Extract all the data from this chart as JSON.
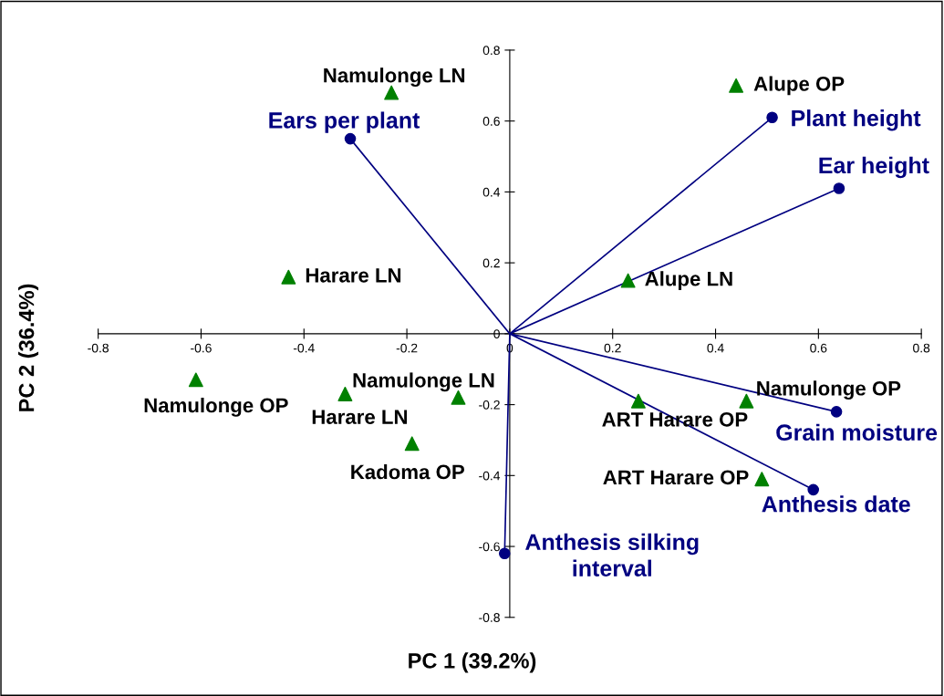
{
  "chart_data": {
    "type": "scatter",
    "xlabel": "PC 1 (39.2%)",
    "ylabel": "PC 2 (36.4%)",
    "xlim": [
      -0.8,
      0.8
    ],
    "ylim": [
      -0.8,
      0.8
    ],
    "xticks": [
      -0.8,
      -0.6,
      -0.4,
      -0.2,
      0,
      0.2,
      0.4,
      0.6,
      0.8
    ],
    "yticks": [
      -0.8,
      -0.6,
      -0.4,
      -0.2,
      0,
      0.2,
      0.4,
      0.6,
      0.8
    ],
    "grid": false,
    "series": [
      {
        "marker": "triangle",
        "color": "#008000",
        "x": [
          -0.23,
          0.44,
          -0.43,
          0.23,
          -0.61,
          -0.32,
          -0.1,
          0.25,
          0.46,
          -0.19,
          0.49
        ],
        "values": [
          0.68,
          0.7,
          0.16,
          0.15,
          -0.13,
          -0.17,
          -0.18,
          -0.19,
          -0.19,
          -0.31,
          -0.41
        ]
      },
      {
        "type": "line",
        "marker": "none",
        "color": "#000080",
        "x": [
          0,
          -0.31,
          null,
          0,
          0.51,
          null,
          0,
          0.64,
          null,
          0,
          0.635,
          null,
          0,
          0.59,
          null,
          0,
          -0.01
        ],
        "values": [
          0,
          0.55,
          null,
          0,
          0.61,
          null,
          0,
          0.41,
          null,
          0,
          -0.22,
          null,
          0,
          -0.44,
          null,
          0,
          -0.62
        ]
      },
      {
        "marker": "circle",
        "color": "#000080",
        "x": [
          -0.31,
          0.51,
          0.64,
          0.635,
          0.59,
          -0.01
        ],
        "values": [
          0.55,
          0.61,
          0.41,
          -0.22,
          -0.44,
          -0.62
        ]
      }
    ],
    "annotations": [
      {
        "text": "Namulonge LN",
        "x": -0.23,
        "y": 0.68
      },
      {
        "text": "Alupe OP",
        "x": 0.44,
        "y": 0.7
      },
      {
        "text": "Harare LN",
        "x": -0.43,
        "y": 0.16
      },
      {
        "text": "Alupe LN",
        "x": 0.23,
        "y": 0.15
      },
      {
        "text": "Namulonge OP",
        "x": -0.61,
        "y": -0.13
      },
      {
        "text": "Harare LN",
        "x": -0.32,
        "y": -0.17
      },
      {
        "text": "Namulonge LN",
        "x": -0.1,
        "y": -0.18
      },
      {
        "text": "ART Harare OP",
        "x": 0.25,
        "y": -0.19
      },
      {
        "text": "Namulonge OP",
        "x": 0.46,
        "y": -0.19
      },
      {
        "text": "Kadoma OP",
        "x": -0.19,
        "y": -0.31
      },
      {
        "text": "ART Harare OP",
        "x": 0.49,
        "y": -0.41
      },
      {
        "text": "Ears per plant",
        "x": -0.31,
        "y": 0.55
      },
      {
        "text": "Plant height",
        "x": 0.51,
        "y": 0.61
      },
      {
        "text": "Ear height",
        "x": 0.64,
        "y": 0.41
      },
      {
        "text": "Grain moisture",
        "x": 0.635,
        "y": -0.22
      },
      {
        "text": "Anthesis date",
        "x": 0.59,
        "y": -0.44
      },
      {
        "text": "Anthesis silking\ninterval",
        "x": -0.01,
        "y": -0.62
      }
    ]
  }
}
